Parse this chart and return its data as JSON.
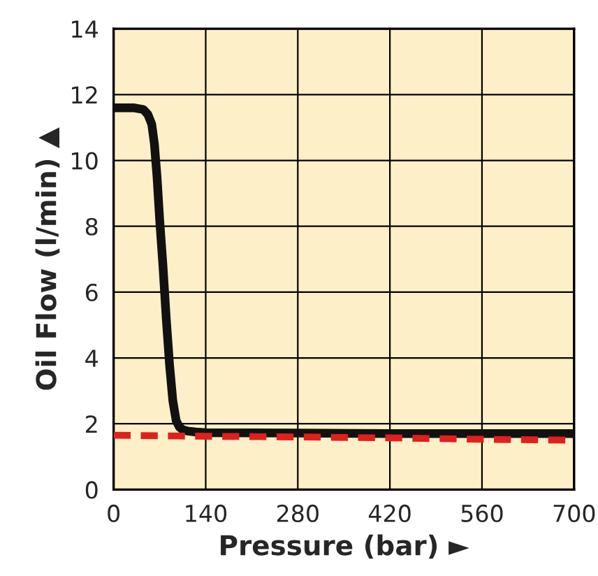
{
  "chart_data": {
    "type": "line",
    "xlabel": "Pressure (bar) ►",
    "ylabel": "Oil Flow (l/min) ▲",
    "xlim": [
      0,
      700
    ],
    "xticks": [
      0,
      140,
      280,
      420,
      560,
      700
    ],
    "ylim": [
      0,
      14
    ],
    "yticks": [
      0,
      2,
      4,
      6,
      8,
      10,
      12,
      14
    ],
    "grid": true,
    "series": [
      {
        "color": "#111111",
        "line_style": "solid",
        "x": [
          0,
          30,
          45,
          52,
          58,
          62,
          66,
          70,
          75,
          80,
          85,
          90,
          95,
          100,
          105,
          112,
          125,
          140,
          280,
          420,
          560,
          700
        ],
        "values": [
          11.6,
          11.6,
          11.55,
          11.4,
          11.1,
          10.5,
          9.5,
          8.2,
          6.8,
          5.2,
          3.8,
          2.7,
          2.1,
          1.9,
          1.82,
          1.78,
          1.75,
          1.73,
          1.72,
          1.7,
          1.7,
          1.7
        ]
      },
      {
        "color": "#e0201c",
        "line_style": "dashed",
        "x": [
          0,
          140,
          280,
          420,
          560,
          700
        ],
        "values": [
          1.65,
          1.62,
          1.6,
          1.57,
          1.53,
          1.5
        ]
      }
    ]
  }
}
